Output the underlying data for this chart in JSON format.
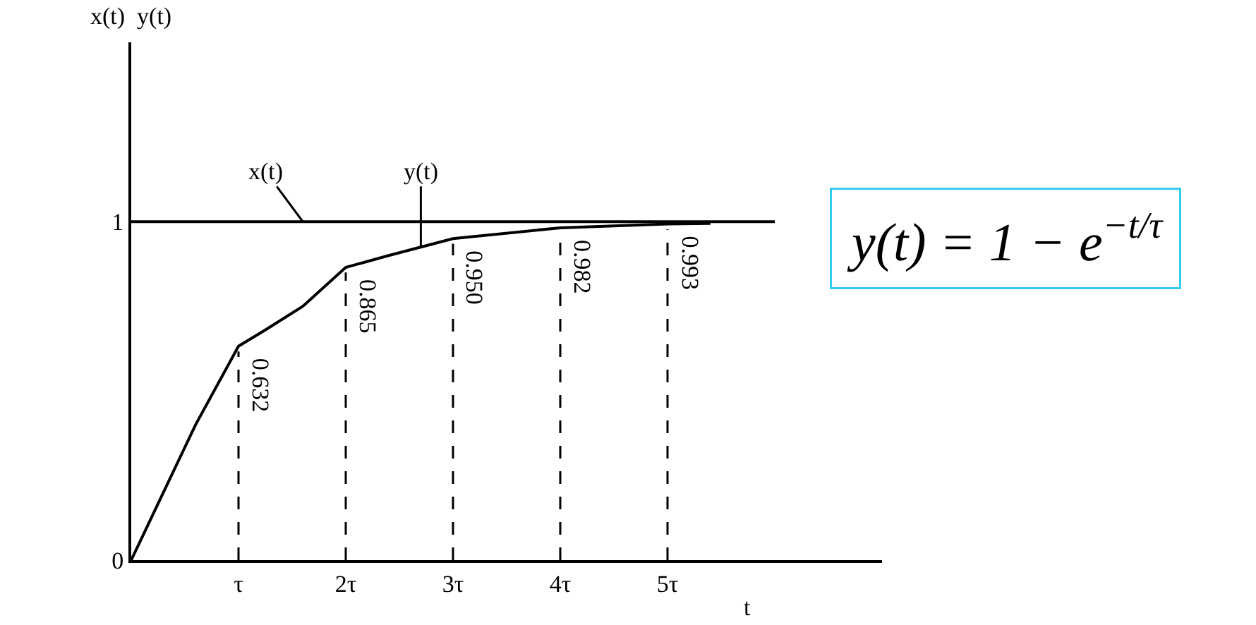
{
  "chart_data": {
    "type": "line",
    "xlabel": "t",
    "ylabel": "x(t)  y(t)",
    "xlim": [
      0,
      7
    ],
    "ylim": [
      0,
      1.53
    ],
    "yticks": [
      0,
      1
    ],
    "xticks": [
      {
        "value": 0,
        "label": null
      },
      {
        "value": 1,
        "label": "τ"
      },
      {
        "value": 2,
        "label": "2τ"
      },
      {
        "value": 3,
        "label": "3τ"
      },
      {
        "value": 4,
        "label": "4τ"
      },
      {
        "value": 5,
        "label": "5τ"
      }
    ],
    "series": [
      {
        "name": "x(t)",
        "color": "#000000",
        "x": [
          0,
          6.0
        ],
        "values": [
          1,
          1
        ]
      },
      {
        "name": "y(t)",
        "color": "#000000",
        "x": [
          0,
          0.6,
          1,
          1.25,
          1.6,
          2,
          2.4,
          3,
          4,
          5,
          5.4
        ],
        "values": [
          0,
          0.4,
          0.632,
          0.68,
          0.75,
          0.865,
          0.9,
          0.95,
          0.982,
          0.993,
          0.995
        ],
        "value_labels": [
          null,
          null,
          "0.632",
          null,
          null,
          "0.865",
          null,
          "0.950",
          "0.982",
          "0.993",
          null
        ]
      }
    ],
    "annotations": [
      "y(t) = 1 − e$^{−t/τ}$"
    ],
    "legend": false,
    "grid": false,
    "marker": "none",
    "line_style": "solid"
  }
}
